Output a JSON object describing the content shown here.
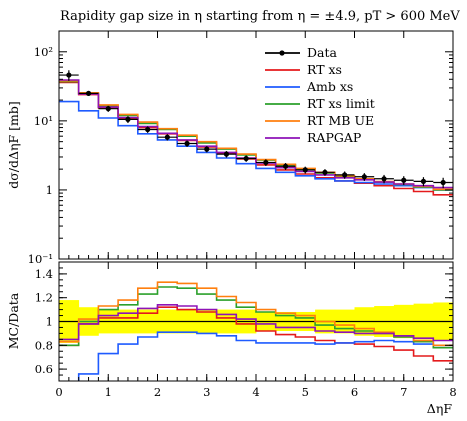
{
  "chart_data": [
    {
      "type": "line",
      "panel": "main",
      "title": "Rapidity gap size in η starting from η = ±4.9, pT > 600 MeV",
      "ylabel": "dσ/dΔηF [mb]",
      "yscale": "log",
      "ylim": [
        0.1,
        200
      ],
      "xlim": [
        0,
        8
      ],
      "ytick_labels": [
        "10²",
        "10¹",
        "1",
        "10⁻¹"
      ],
      "bin_edges": [
        0,
        0.4,
        0.8,
        1.2,
        1.6,
        2.0,
        2.4,
        2.8,
        3.2,
        3.6,
        4.0,
        4.4,
        4.8,
        5.2,
        5.6,
        6.0,
        6.4,
        6.8,
        7.2,
        7.6,
        8.0
      ],
      "legend_position": "top-right",
      "series": [
        {
          "name": "Data",
          "color": "#000000",
          "style": "points",
          "x": [
            0.2,
            0.6,
            1.0,
            1.4,
            1.8,
            2.2,
            2.6,
            3.0,
            3.4,
            3.8,
            4.2,
            4.6,
            5.0,
            5.4,
            5.8,
            6.2,
            6.6,
            7.0,
            7.4,
            7.8
          ],
          "values": [
            46,
            25,
            15,
            10.5,
            7.5,
            5.8,
            4.7,
            3.9,
            3.3,
            2.85,
            2.5,
            2.2,
            1.95,
            1.8,
            1.65,
            1.55,
            1.45,
            1.38,
            1.33,
            1.28
          ],
          "errors": [
            8,
            2,
            1.5,
            1.2,
            0.8,
            0.6,
            0.5,
            0.4,
            0.35,
            0.3,
            0.28,
            0.25,
            0.22,
            0.2,
            0.2,
            0.2,
            0.2,
            0.2,
            0.2,
            0.22
          ]
        },
        {
          "name": "RT xs",
          "color": "#e41a1c",
          "style": "step",
          "values": [
            36,
            24,
            15.5,
            10.8,
            8.0,
            6.5,
            5.2,
            4.2,
            3.4,
            2.8,
            2.3,
            1.95,
            1.7,
            1.5,
            1.35,
            1.25,
            1.15,
            1.05,
            0.95,
            0.85
          ]
        },
        {
          "name": "Amb xs",
          "color": "#1f5bff",
          "style": "step",
          "values": [
            19,
            14,
            11,
            8.5,
            6.5,
            5.3,
            4.3,
            3.5,
            2.9,
            2.4,
            2.05,
            1.8,
            1.6,
            1.45,
            1.35,
            1.28,
            1.22,
            1.15,
            1.08,
            1.0
          ]
        },
        {
          "name": "RT xs limit",
          "color": "#2ca02c",
          "style": "step",
          "values": [
            37,
            25,
            16.5,
            12,
            9.2,
            7.5,
            6.0,
            4.8,
            3.9,
            3.2,
            2.7,
            2.3,
            2.0,
            1.75,
            1.55,
            1.42,
            1.3,
            1.2,
            1.1,
            1.0
          ]
        },
        {
          "name": "RT MB UE",
          "color": "#ff7f0e",
          "style": "step",
          "values": [
            38,
            25.5,
            17,
            12.4,
            9.6,
            7.7,
            6.2,
            5.0,
            4.0,
            3.3,
            2.75,
            2.35,
            2.05,
            1.8,
            1.6,
            1.45,
            1.32,
            1.22,
            1.12,
            1.02
          ]
        },
        {
          "name": "RAPGAP",
          "color": "#8e13b7",
          "style": "step",
          "values": [
            39,
            24.5,
            15.8,
            11.2,
            8.3,
            6.6,
            5.3,
            4.3,
            3.5,
            2.9,
            2.45,
            2.1,
            1.85,
            1.65,
            1.5,
            1.4,
            1.3,
            1.22,
            1.15,
            1.08
          ]
        }
      ]
    },
    {
      "type": "line",
      "panel": "ratio",
      "ylabel": "MC/Data",
      "xlabel": "ΔηF",
      "ylim": [
        0.5,
        1.5
      ],
      "xlim": [
        0,
        8
      ],
      "yticks": [
        0.6,
        0.8,
        1.0,
        1.2,
        1.4
      ],
      "ytick_labels": [
        "0.6",
        "0.8",
        "1",
        "1.2",
        "1.4"
      ],
      "xticks": [
        0,
        1,
        2,
        3,
        4,
        5,
        6,
        7,
        8
      ],
      "xtick_labels": [
        "0",
        "1",
        "2",
        "3",
        "4",
        "5",
        "6",
        "7",
        "8"
      ],
      "band": {
        "color": "#ffff00",
        "lower": [
          0.82,
          0.88,
          0.9,
          0.9,
          0.9,
          0.9,
          0.9,
          0.9,
          0.9,
          0.9,
          0.92,
          0.92,
          0.92,
          0.9,
          0.9,
          0.88,
          0.87,
          0.86,
          0.85,
          0.84
        ],
        "upper": [
          1.18,
          1.12,
          1.1,
          1.1,
          1.1,
          1.1,
          1.1,
          1.1,
          1.1,
          1.1,
          1.08,
          1.08,
          1.08,
          1.1,
          1.1,
          1.12,
          1.13,
          1.14,
          1.15,
          1.16
        ]
      },
      "series": [
        {
          "name": "RT xs",
          "color": "#e41a1c",
          "values": [
            0.8,
            0.98,
            1.03,
            1.03,
            1.07,
            1.12,
            1.1,
            1.08,
            1.03,
            0.98,
            0.92,
            0.89,
            0.87,
            0.84,
            0.82,
            0.81,
            0.79,
            0.76,
            0.71,
            0.67
          ]
        },
        {
          "name": "Amb xs",
          "color": "#1f5bff",
          "values": [
            0.41,
            0.56,
            0.73,
            0.81,
            0.87,
            0.91,
            0.91,
            0.9,
            0.88,
            0.84,
            0.82,
            0.82,
            0.82,
            0.81,
            0.82,
            0.83,
            0.84,
            0.83,
            0.81,
            0.78
          ]
        },
        {
          "name": "RT xs limit",
          "color": "#2ca02c",
          "values": [
            0.8,
            1.0,
            1.1,
            1.14,
            1.23,
            1.29,
            1.28,
            1.23,
            1.18,
            1.12,
            1.08,
            1.05,
            1.03,
            0.97,
            0.94,
            0.92,
            0.9,
            0.87,
            0.83,
            0.78
          ]
        },
        {
          "name": "RT MB UE",
          "color": "#ff7f0e",
          "values": [
            0.83,
            1.02,
            1.13,
            1.18,
            1.28,
            1.33,
            1.32,
            1.28,
            1.21,
            1.16,
            1.1,
            1.07,
            1.05,
            1.0,
            0.97,
            0.94,
            0.91,
            0.88,
            0.84,
            0.8
          ]
        },
        {
          "name": "RAPGAP",
          "color": "#8e13b7",
          "values": [
            0.85,
            0.98,
            1.05,
            1.07,
            1.11,
            1.14,
            1.13,
            1.1,
            1.06,
            1.02,
            0.98,
            0.95,
            0.95,
            0.92,
            0.91,
            0.9,
            0.9,
            0.88,
            0.86,
            0.84
          ]
        }
      ]
    }
  ]
}
